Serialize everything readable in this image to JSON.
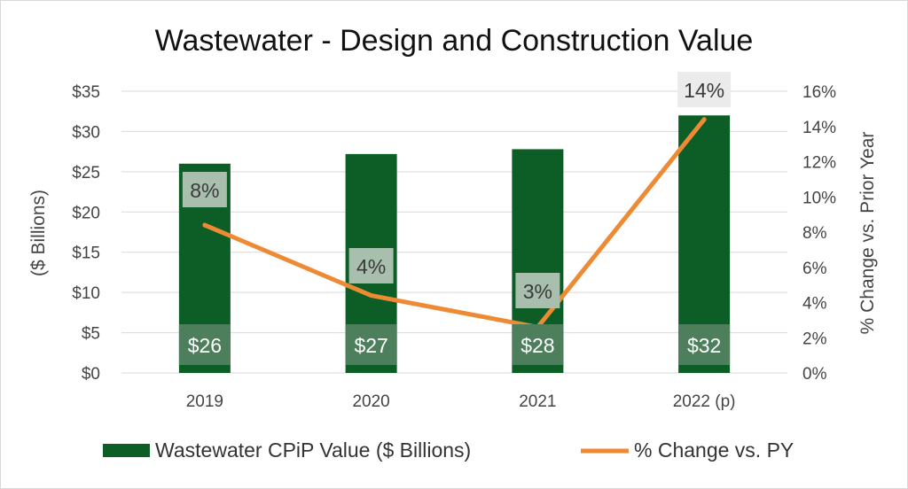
{
  "colors": {
    "bar": "#0c5e26",
    "bar_label_box": "#4d7f5d",
    "line": "#ef8a34",
    "pct_label_box_on_bar": "#a9bfae",
    "pct_label_box_off_bar": "#ebebeb",
    "grid": "#d9d9d9"
  },
  "chart_data": {
    "type": "bar",
    "title": "Wastewater - Design and Construction Value",
    "categories": [
      "2019",
      "2020",
      "2021",
      "2022 (p)"
    ],
    "series": [
      {
        "name": "Wastewater CPiP Value ($ Billions)",
        "type": "bar",
        "axis": "left",
        "values": [
          26,
          27.2,
          27.8,
          32
        ],
        "labels": [
          "$26",
          "$27",
          "$28",
          "$32"
        ]
      },
      {
        "name": "% Change vs. PY",
        "type": "line",
        "axis": "right",
        "values": [
          8.4,
          4.4,
          2.6,
          14.4
        ],
        "labels": [
          "8%",
          "4%",
          "3%",
          "14%"
        ]
      }
    ],
    "ylabel": "($ Billions)",
    "y2label": "% Change vs. Prior Year",
    "ylim": [
      0,
      35
    ],
    "y2lim": [
      0,
      16
    ],
    "yticks": [
      "$0",
      "$5",
      "$10",
      "$15",
      "$20",
      "$25",
      "$30",
      "$35"
    ],
    "y2ticks": [
      "0%",
      "2%",
      "4%",
      "6%",
      "8%",
      "10%",
      "12%",
      "14%",
      "16%"
    ],
    "grid": true,
    "legend_position": "bottom"
  }
}
